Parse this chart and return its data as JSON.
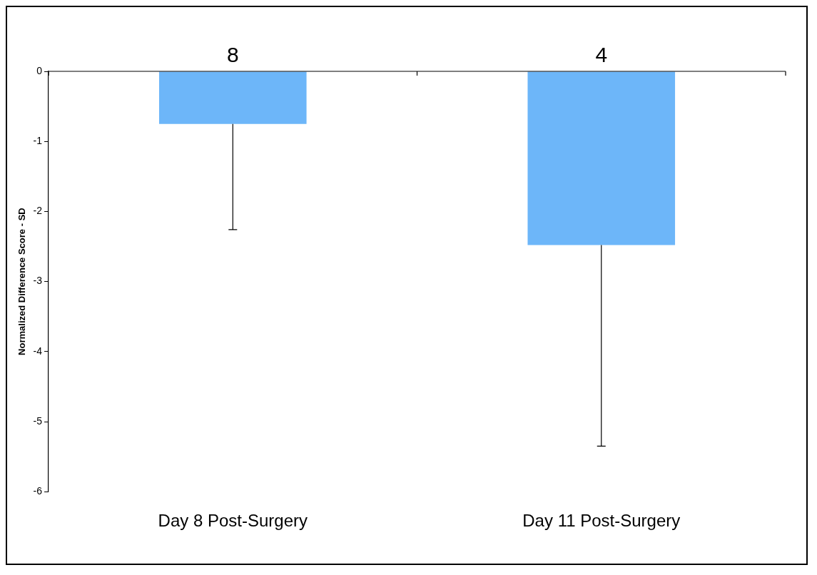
{
  "chart_data": {
    "type": "bar",
    "ylabel": "Normalized Difference Score - SD",
    "categories": [
      "Day 8 Post-Surgery",
      "Day 11 Post-Surgery"
    ],
    "values": [
      -0.75,
      -2.48
    ],
    "color": "#6db6f9",
    "errors": [
      [
        -2.26,
        -0.75
      ],
      [
        -5.35,
        -2.48
      ]
    ],
    "ylim": [
      -6,
      0
    ],
    "yticks": [
      -6,
      -5,
      -4,
      -3,
      -2,
      -1,
      0
    ],
    "grid": false,
    "legend": false,
    "annotations": [
      {
        "text": "8",
        "x": "Day 8 Post-Surgery",
        "y": 0
      },
      {
        "text": "4",
        "x": "Day 11 Post-Surgery",
        "y": 0
      }
    ]
  }
}
